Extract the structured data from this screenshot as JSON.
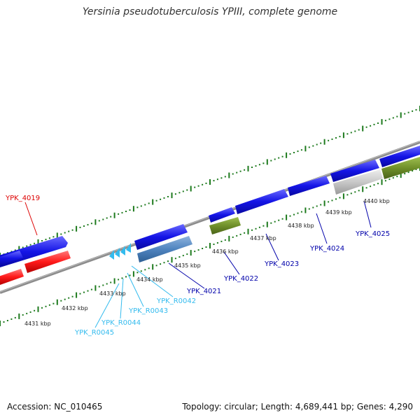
{
  "title": "Yersinia pseudotuberculosis YPIII, complete genome",
  "footer": {
    "accession": "Accession: NC_010465",
    "summary": "Topology: circular; Length: 4,689,441 bp; Genes: 4,290"
  },
  "kbp_labels": [
    "4431 kbp",
    "4432 kbp",
    "4433 kbp",
    "4434 kbp",
    "4435 kbp",
    "4436 kbp",
    "4437 kbp",
    "4438 kbp",
    "4439 kbp",
    "4440 kbp"
  ],
  "gene_labels": [
    "YPK_4019",
    "YPK_4021",
    "YPK_4022",
    "YPK_4023",
    "YPK_4024",
    "YPK_4025",
    "YPK_R0042",
    "YPK_R0043",
    "YPK_R0044",
    "YPK_R0045"
  ],
  "colors": {
    "cds": "#1414e6",
    "cds_dark": "#0a0a99",
    "red": "#ff1a1a",
    "steelblue": "#4f84bf",
    "olive": "#6f8f2a",
    "lightgray": "#c8c8c8",
    "trna": "#33bbee",
    "backbone": "#8c8c8c",
    "tick": "#1d7a1d",
    "label_blue": "#0000aa",
    "label_red": "#dd0000",
    "label_cyan": "#33bbee"
  }
}
